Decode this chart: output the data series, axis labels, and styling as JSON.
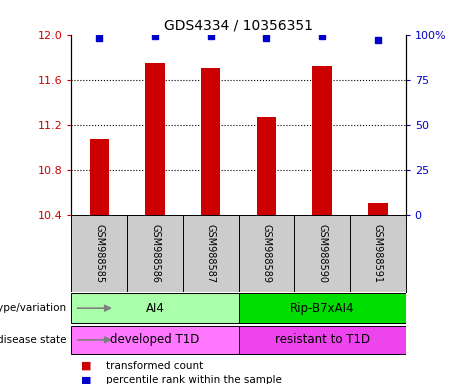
{
  "title": "GDS4334 / 10356351",
  "samples": [
    "GSM988585",
    "GSM988586",
    "GSM988587",
    "GSM988589",
    "GSM988590",
    "GSM988591"
  ],
  "red_values": [
    11.07,
    11.75,
    11.7,
    11.27,
    11.72,
    10.51
  ],
  "blue_values": [
    98,
    99,
    99,
    98,
    99,
    97
  ],
  "ylim_left": [
    10.4,
    12.0
  ],
  "ylim_right": [
    0,
    100
  ],
  "yticks_left": [
    10.4,
    10.8,
    11.2,
    11.6,
    12.0
  ],
  "yticks_right": [
    0,
    25,
    50,
    75,
    100
  ],
  "yticklabels_right": [
    "0",
    "25",
    "50",
    "75",
    "100%"
  ],
  "red_color": "#cc0000",
  "blue_color": "#0000cc",
  "bar_width": 0.35,
  "genotype_groups": [
    {
      "label": "AI4",
      "samples": [
        0,
        1,
        2
      ],
      "color": "#aaffaa"
    },
    {
      "label": "Rip-B7xAI4",
      "samples": [
        3,
        4,
        5
      ],
      "color": "#00dd00"
    }
  ],
  "disease_groups": [
    {
      "label": "developed T1D",
      "samples": [
        0,
        1,
        2
      ],
      "color": "#ff77ff"
    },
    {
      "label": "resistant to T1D",
      "samples": [
        3,
        4,
        5
      ],
      "color": "#ee44ee"
    }
  ],
  "legend_items": [
    {
      "label": "transformed count",
      "color": "#cc0000"
    },
    {
      "label": "percentile rank within the sample",
      "color": "#0000cc"
    }
  ],
  "row_labels": [
    "genotype/variation",
    "disease state"
  ],
  "sample_bg": "#cccccc",
  "background_color": "#ffffff",
  "tick_label_color_left": "#cc0000",
  "tick_label_color_right": "#0000cc",
  "hgrid_values": [
    10.8,
    11.2,
    11.6
  ]
}
